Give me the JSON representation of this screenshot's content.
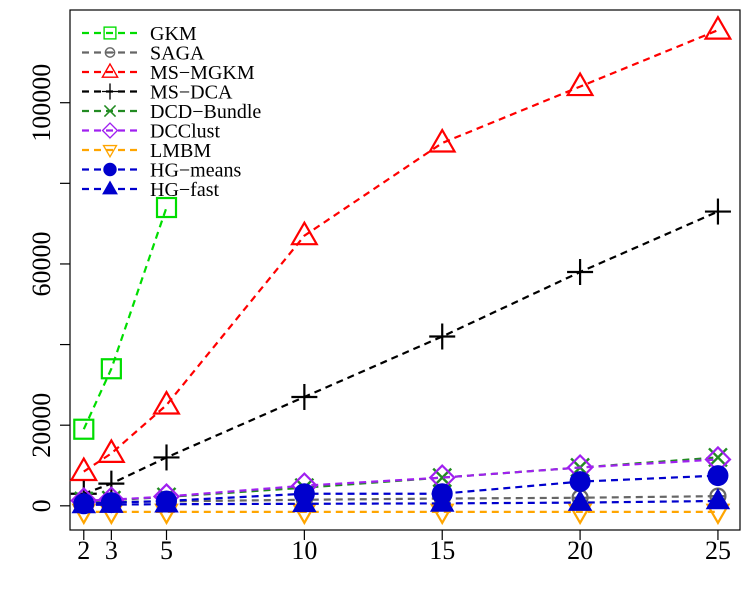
{
  "chart_data": {
    "type": "line",
    "title": "",
    "xlabel": "",
    "ylabel": "",
    "x": [
      2,
      3,
      5,
      10,
      15,
      20,
      25
    ],
    "x_ticks": [
      2,
      3,
      5,
      10,
      15,
      20,
      25
    ],
    "y_ticks": [
      0,
      20000,
      40000,
      60000,
      80000,
      100000
    ],
    "y_tick_labels": [
      "0",
      "20000",
      "",
      "60000",
      "",
      "100000"
    ],
    "xlim": [
      1.5,
      25.8
    ],
    "ylim": [
      -6000,
      123000
    ],
    "grid": false,
    "legend_position": "top-left",
    "series": [
      {
        "name": "GKM",
        "color": "#00dd00",
        "marker": "square-open",
        "dash": true,
        "values": [
          19000,
          34000,
          74000,
          null,
          null,
          null,
          null
        ]
      },
      {
        "name": "SAGA",
        "color": "#666666",
        "marker": "circle-cross",
        "dash": true,
        "values": [
          700,
          900,
          1100,
          1500,
          1800,
          2000,
          2400
        ]
      },
      {
        "name": "MS−MGKM",
        "color": "#ff0000",
        "marker": "triangle-open",
        "dash": true,
        "values": [
          8500,
          13000,
          25000,
          67000,
          90000,
          104000,
          118000
        ]
      },
      {
        "name": "MS−DCA",
        "color": "#000000",
        "marker": "plus",
        "dash": true,
        "values": [
          3000,
          5500,
          12000,
          27000,
          42000,
          58000,
          73000
        ]
      },
      {
        "name": "DCD−Bundle",
        "color": "#228B22",
        "marker": "x",
        "dash": true,
        "values": [
          1200,
          1400,
          2200,
          4500,
          7000,
          9500,
          12000
        ]
      },
      {
        "name": "DCClust",
        "color": "#a020f0",
        "marker": "diamond-open",
        "dash": true,
        "values": [
          1300,
          1500,
          2300,
          5000,
          7000,
          9500,
          11500
        ]
      },
      {
        "name": "LMBM",
        "color": "#ffa500",
        "marker": "triangle-down-open",
        "dash": true,
        "values": [
          -1500,
          -1500,
          -1500,
          -1500,
          -1500,
          -1500,
          -1500
        ]
      },
      {
        "name": "HG−means",
        "color": "#0000cd",
        "marker": "circle-filled",
        "dash": true,
        "values": [
          500,
          800,
          1200,
          3000,
          3000,
          6000,
          7500
        ]
      },
      {
        "name": "HG−fast",
        "color": "#0000cd",
        "marker": "triangle-filled",
        "dash": true,
        "values": [
          200,
          300,
          400,
          500,
          600,
          800,
          1200
        ]
      }
    ]
  }
}
